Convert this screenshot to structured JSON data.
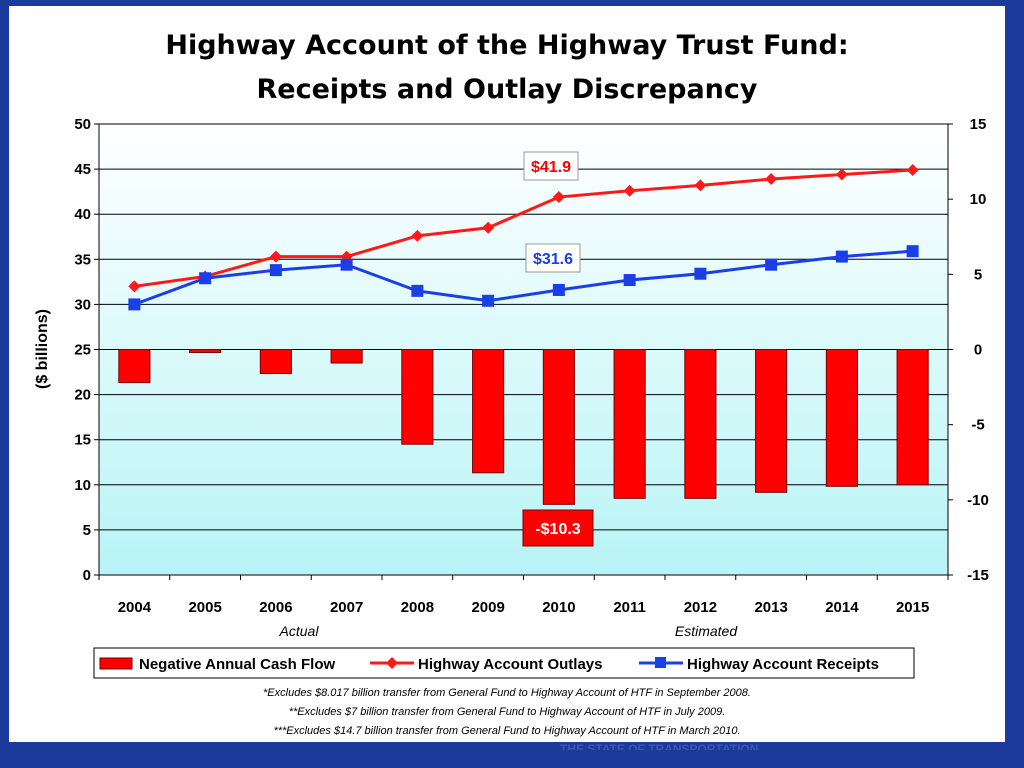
{
  "chart_data": {
    "type": "bar+line",
    "title_line1": "Highway Account of the Highway Trust Fund:",
    "title_line2": "Receipts and Outlay Discrepancy",
    "ylabel": "($ billions)",
    "categories": [
      "2004",
      "2005",
      "2006",
      "2007",
      "2008",
      "2009",
      "2010",
      "2011",
      "2012",
      "2013",
      "2014",
      "2015"
    ],
    "left_axis": {
      "min": 0,
      "max": 50,
      "ticks": [
        "0",
        "5",
        "10",
        "15",
        "20",
        "25",
        "30",
        "35",
        "40",
        "45",
        "50"
      ]
    },
    "right_axis": {
      "min": -15,
      "max": 15,
      "ticks": [
        "-15",
        "-10",
        "-5",
        "0",
        "5",
        "10",
        "15"
      ]
    },
    "series": [
      {
        "name": "Negative Annual Cash Flow",
        "type": "bar",
        "axis": "right",
        "color": "#ff0000",
        "values": [
          -2.2,
          -0.2,
          -1.6,
          -0.9,
          -6.3,
          -8.2,
          -10.3,
          -9.9,
          -9.9,
          -9.5,
          -9.1,
          -9.0
        ]
      },
      {
        "name": "Highway Account Outlays",
        "type": "line",
        "axis": "left",
        "color": "#ff1a1a",
        "values": [
          32.0,
          33.1,
          35.3,
          35.3,
          37.6,
          38.5,
          41.9,
          42.6,
          43.2,
          43.9,
          44.4,
          44.9
        ]
      },
      {
        "name": "Highway Account Receipts",
        "type": "line",
        "axis": "left",
        "color": "#1a3fe6",
        "values": [
          30.0,
          32.9,
          33.8,
          34.4,
          31.5,
          30.4,
          31.6,
          32.7,
          33.4,
          34.4,
          35.3,
          35.9
        ]
      }
    ],
    "period_labels": {
      "actual": "Actual",
      "estimated": "Estimated"
    },
    "callouts": {
      "outlay_2010": "$41.9",
      "receipt_2010": "$31.6",
      "cashflow_2010": "-$10.3"
    },
    "legend_position": "bottom",
    "grid": true
  },
  "notes": [
    "*Excludes $8.017 billion transfer from General Fund to Highway Account of HTF in September 2008.",
    "**Excludes $7 billion transfer from General Fund to Highway Account of HTF in July 2009.",
    "***Excludes $14.7 billion transfer from General Fund to Highway Account of HTF in March 2010."
  ],
  "footer": "THE STATE OF TRANSPORTATION"
}
